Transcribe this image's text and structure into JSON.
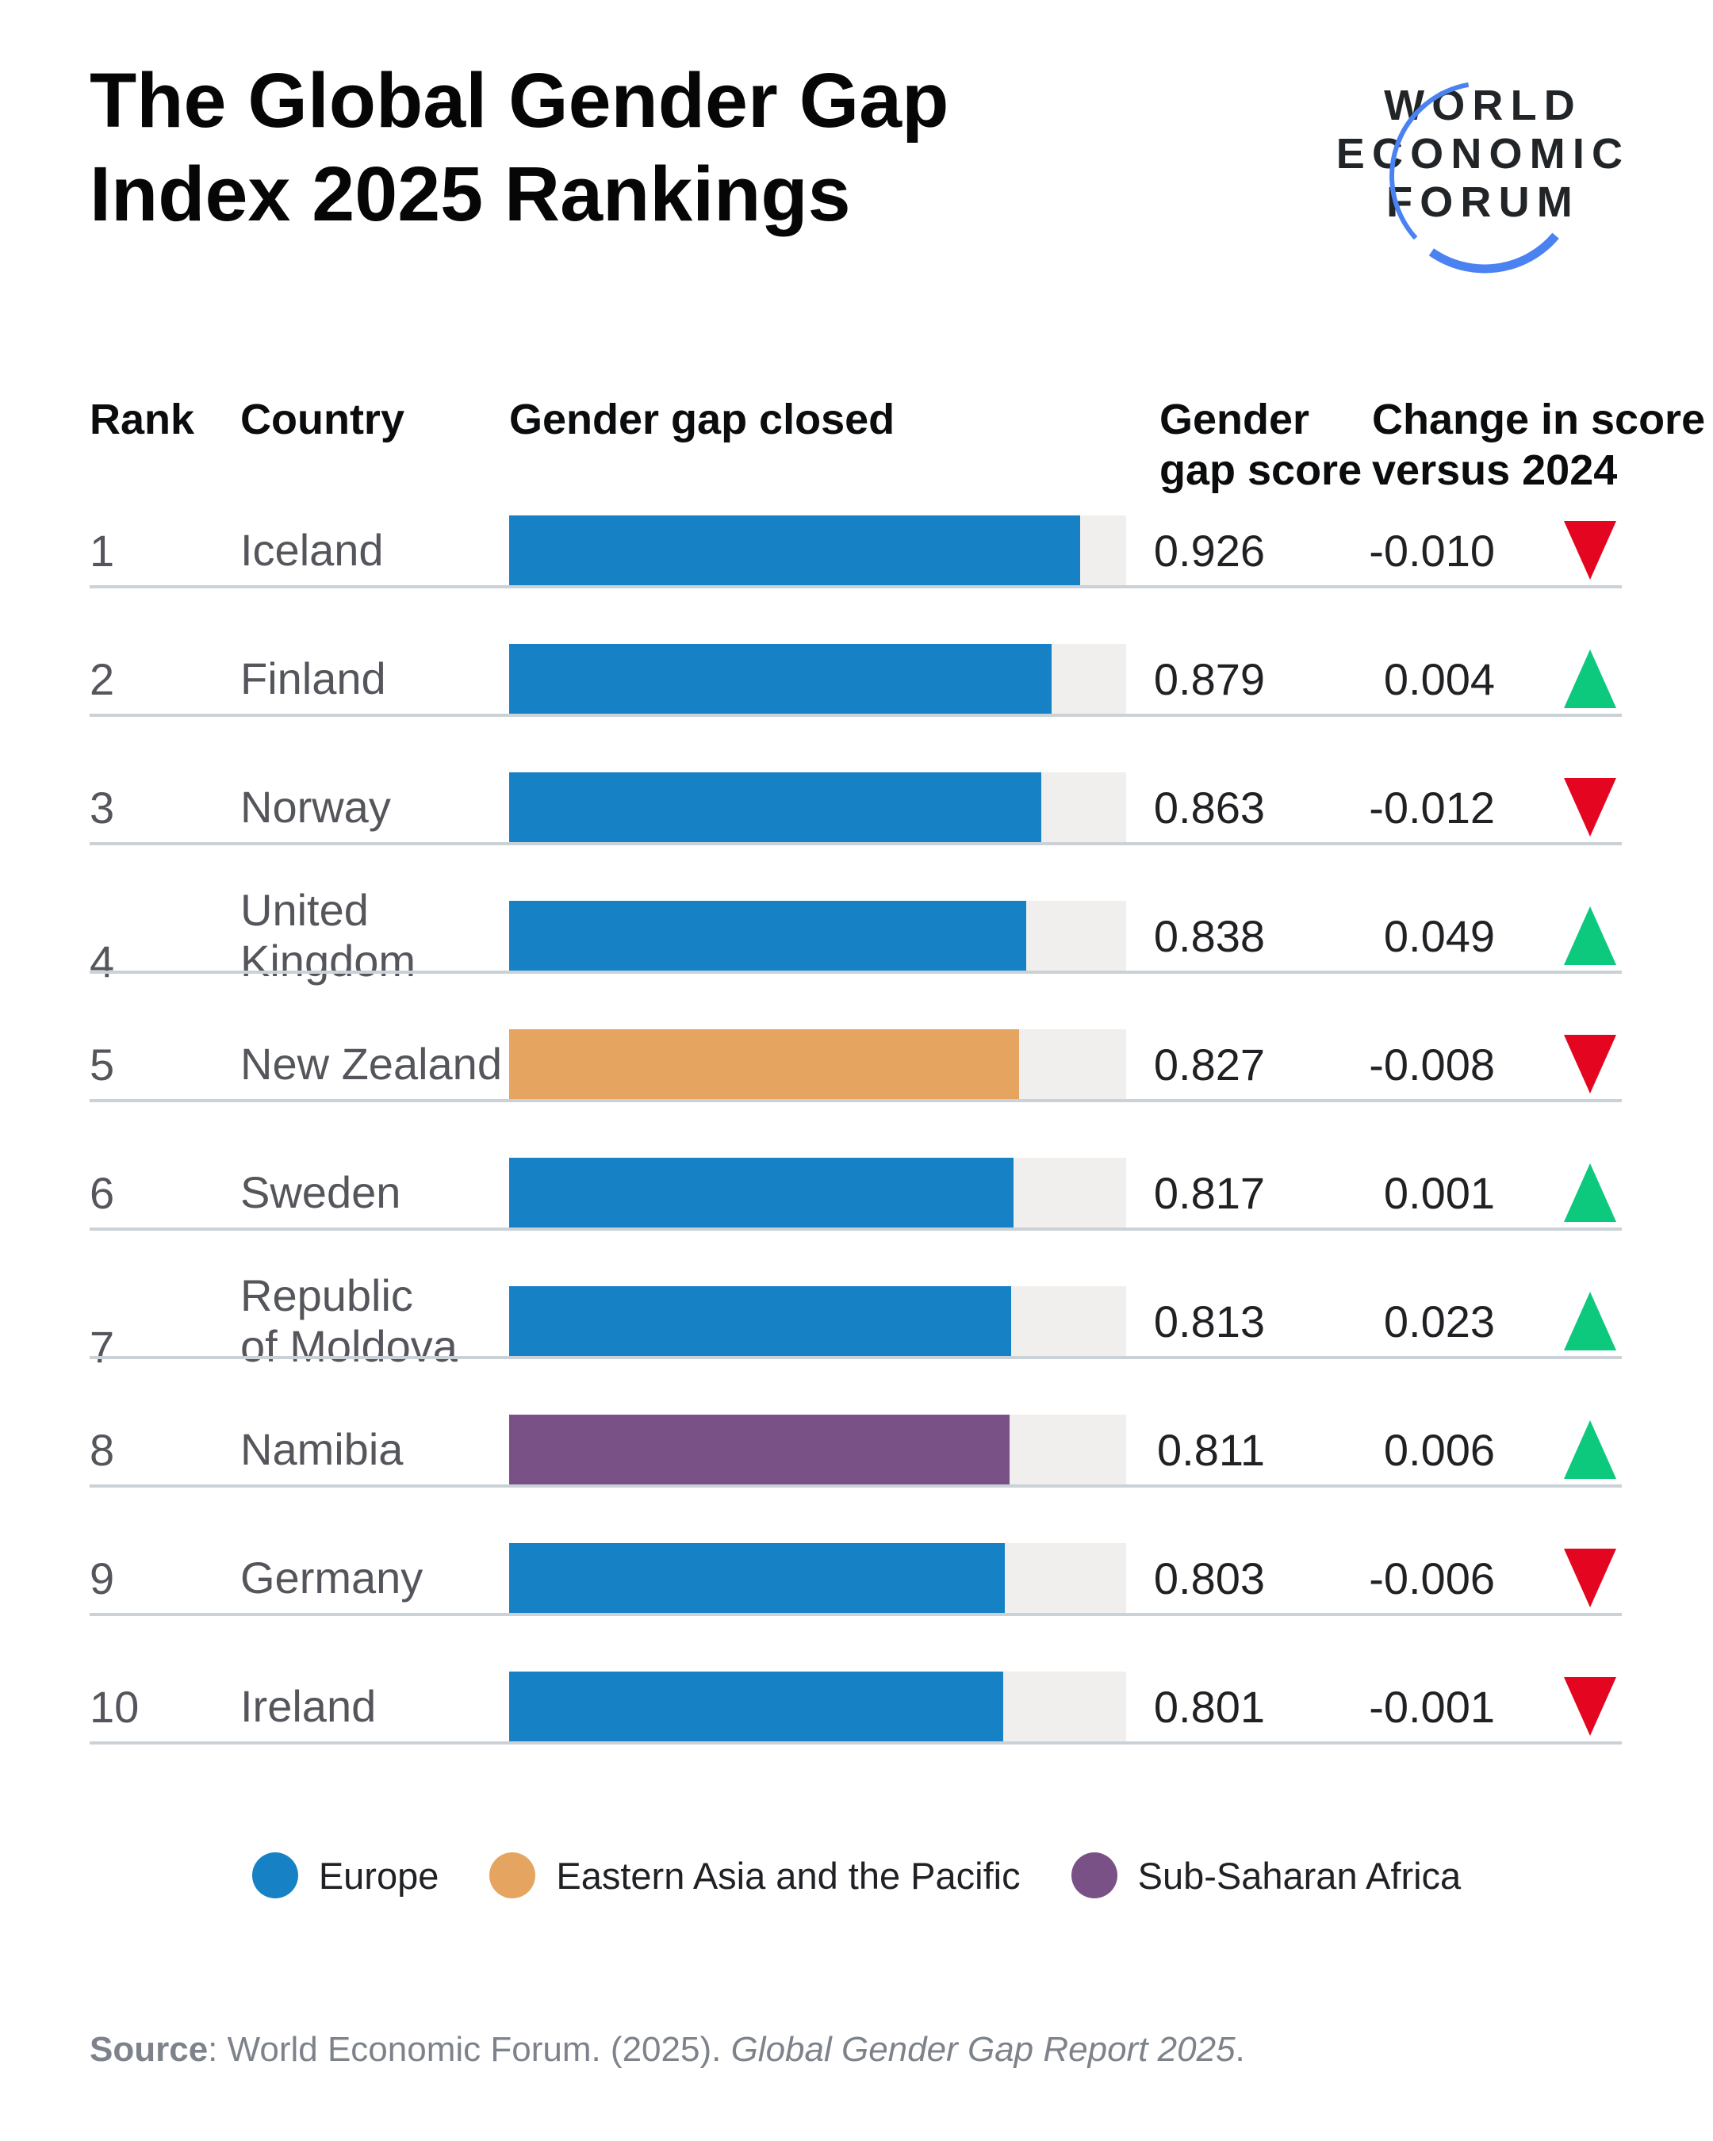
{
  "title": {
    "line1": "The Global Gender Gap",
    "line2": "Index 2025 Rankings"
  },
  "logo": {
    "line1": "WORLD",
    "line2": "ECONOMIC",
    "line3": "FORUM",
    "arc_color": "#4b82f1"
  },
  "table": {
    "headers": {
      "rank": "Rank",
      "country": "Country",
      "bar": "Gender gap closed",
      "score": "Gender\ngap score",
      "change": "Change in score\nversus 2024"
    },
    "rows": [
      {
        "rank": "1",
        "country": "Iceland",
        "region": "europe",
        "score": "0.926",
        "score_value": 0.926,
        "change": "-0.010",
        "direction": "down"
      },
      {
        "rank": "2",
        "country": "Finland",
        "region": "europe",
        "score": "0.879",
        "score_value": 0.879,
        "change": "0.004",
        "direction": "up"
      },
      {
        "rank": "3",
        "country": "Norway",
        "region": "europe",
        "score": "0.863",
        "score_value": 0.863,
        "change": "-0.012",
        "direction": "down"
      },
      {
        "rank": "4",
        "country": "United\nKingdom",
        "region": "europe",
        "score": "0.838",
        "score_value": 0.838,
        "change": "0.049",
        "direction": "up"
      },
      {
        "rank": "5",
        "country": "New Zealand",
        "region": "eastern_asia_pacific",
        "score": "0.827",
        "score_value": 0.827,
        "change": "-0.008",
        "direction": "down"
      },
      {
        "rank": "6",
        "country": "Sweden",
        "region": "europe",
        "score": "0.817",
        "score_value": 0.817,
        "change": "0.001",
        "direction": "up"
      },
      {
        "rank": "7",
        "country": "Republic\nof Moldova",
        "region": "europe",
        "score": "0.813",
        "score_value": 0.813,
        "change": "0.023",
        "direction": "up"
      },
      {
        "rank": "8",
        "country": "Namibia",
        "region": "sub_saharan_africa",
        "score": "0.811",
        "score_value": 0.811,
        "change": "0.006",
        "direction": "up"
      },
      {
        "rank": "9",
        "country": "Germany",
        "region": "europe",
        "score": "0.803",
        "score_value": 0.803,
        "change": "-0.006",
        "direction": "down"
      },
      {
        "rank": "10",
        "country": "Ireland",
        "region": "europe",
        "score": "0.801",
        "score_value": 0.801,
        "change": "-0.001",
        "direction": "down"
      }
    ]
  },
  "colors": {
    "europe": "#1781c5",
    "eastern_asia_pacific": "#e5a45f",
    "sub_saharan_africa": "#7a5187",
    "up": "#0cc97d",
    "down": "#e40521",
    "track": "#f0efed"
  },
  "legend": [
    {
      "label": "Europe",
      "region": "europe"
    },
    {
      "label": "Eastern Asia and the Pacific",
      "region": "eastern_asia_pacific"
    },
    {
      "label": "Sub-Saharan Africa",
      "region": "sub_saharan_africa"
    }
  ],
  "source": {
    "label": "Source",
    "rest": ": World Economic Forum. (2025). ",
    "italic": "Global Gender Gap Report 2025",
    "suffix": "."
  },
  "chart_data": {
    "type": "bar",
    "orientation": "horizontal",
    "title": "The Global Gender Gap Index 2025 Rankings",
    "categories": [
      "Iceland",
      "Finland",
      "Norway",
      "United Kingdom",
      "New Zealand",
      "Sweden",
      "Republic of Moldova",
      "Namibia",
      "Germany",
      "Ireland"
    ],
    "series": [
      {
        "name": "Gender gap score",
        "values": [
          0.926,
          0.879,
          0.863,
          0.838,
          0.827,
          0.817,
          0.813,
          0.811,
          0.803,
          0.801
        ]
      },
      {
        "name": "Change in score versus 2024",
        "values": [
          -0.01,
          0.004,
          -0.012,
          0.049,
          -0.008,
          0.001,
          0.023,
          0.006,
          -0.006,
          -0.001
        ]
      }
    ],
    "ranks": [
      1,
      2,
      3,
      4,
      5,
      6,
      7,
      8,
      9,
      10
    ],
    "regions": [
      "Europe",
      "Europe",
      "Europe",
      "Europe",
      "Eastern Asia and the Pacific",
      "Europe",
      "Europe",
      "Sub-Saharan Africa",
      "Europe",
      "Europe"
    ],
    "xlabel": "Gender gap closed",
    "ylabel": "Country",
    "xlim": [
      0,
      1
    ],
    "grid": false,
    "legend_position": "bottom",
    "legend_entries": [
      "Europe",
      "Eastern Asia and the Pacific",
      "Sub-Saharan Africa"
    ],
    "annotations": "Red down triangle = score decreased vs 2024; green up triangle = score increased"
  }
}
